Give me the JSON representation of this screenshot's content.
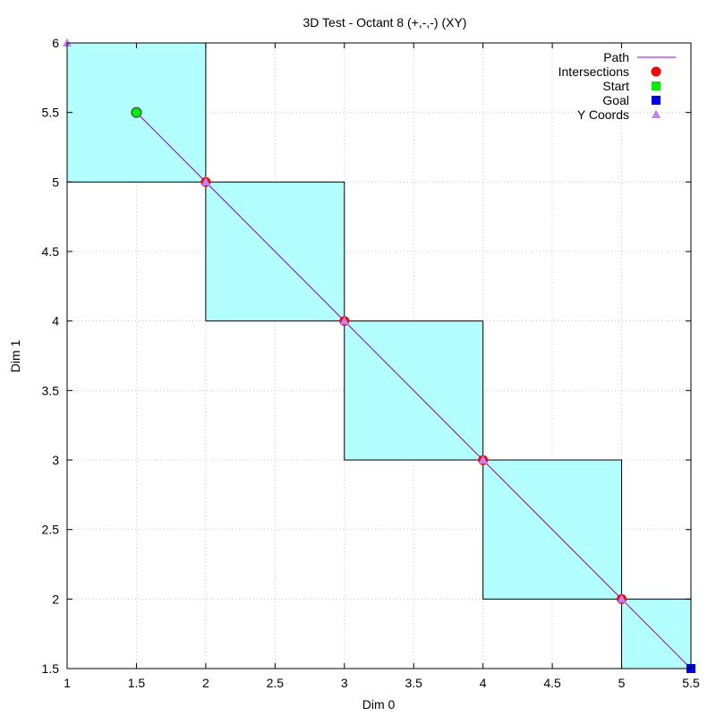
{
  "chart_data": {
    "type": "scatter",
    "title": "3D Test - Octant 8 (+,-,-) (XY)",
    "xlabel": "Dim 0",
    "ylabel": "Dim 1",
    "xlim": [
      1,
      5.5
    ],
    "ylim": [
      1.5,
      6
    ],
    "x_ticks": [
      "1",
      "1.5",
      "2",
      "2.5",
      "3",
      "3.5",
      "4",
      "4.5",
      "5",
      "5.5"
    ],
    "y_ticks": [
      "1.5",
      "2",
      "2.5",
      "3",
      "3.5",
      "4",
      "4.5",
      "5",
      "5.5",
      "6"
    ],
    "grid": true,
    "legend_position": "top-right",
    "cells": [
      {
        "x0": 1,
        "x1": 2,
        "y0": 5,
        "y1": 6
      },
      {
        "x0": 2,
        "x1": 3,
        "y0": 4,
        "y1": 5
      },
      {
        "x0": 3,
        "x1": 4,
        "y0": 3,
        "y1": 4
      },
      {
        "x0": 4,
        "x1": 5,
        "y0": 2,
        "y1": 3
      },
      {
        "x0": 5,
        "x1": 5.5,
        "y0": 1.5,
        "y1": 2
      }
    ],
    "series": [
      {
        "name": "Path",
        "kind": "line",
        "color": "#9400d3",
        "points": [
          [
            1.5,
            5.5
          ],
          [
            5.5,
            1.5
          ]
        ]
      },
      {
        "name": "Intersections",
        "kind": "circle",
        "color": "#ff0000",
        "points": [
          [
            2,
            5
          ],
          [
            3,
            4
          ],
          [
            4,
            3
          ],
          [
            5,
            2
          ]
        ]
      },
      {
        "name": "Start",
        "kind": "square",
        "color": "#00ee00",
        "points": [
          [
            1.5,
            5.5
          ]
        ]
      },
      {
        "name": "Goal",
        "kind": "square",
        "color": "#0000ee",
        "points": [
          [
            5.5,
            1.5
          ]
        ]
      },
      {
        "name": "Y Coords",
        "kind": "triangle",
        "color": "#c080ff",
        "points": [
          [
            1,
            6
          ],
          [
            2,
            5
          ],
          [
            3,
            4
          ],
          [
            4,
            3
          ],
          [
            5,
            2
          ]
        ]
      }
    ],
    "colors": {
      "cell_fill": "#b3ffff",
      "grid": "#c8c8c8"
    }
  }
}
